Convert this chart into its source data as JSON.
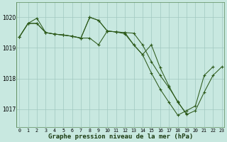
{
  "background_color": "#c8e8e0",
  "plot_bg_color": "#c8e8e0",
  "grid_color": "#a0c8c0",
  "line_color": "#2d5a1b",
  "xlabel": "Graphe pression niveau de la mer (hPa)",
  "xlabel_fontsize": 6.5,
  "ylim": [
    1016.4,
    1020.5
  ],
  "xlim": [
    -0.3,
    23.3
  ],
  "yticks": [
    1017,
    1018,
    1019,
    1020
  ],
  "xticks": [
    0,
    1,
    2,
    3,
    4,
    5,
    6,
    7,
    8,
    9,
    10,
    11,
    12,
    13,
    14,
    15,
    16,
    17,
    18,
    19,
    20,
    21,
    22,
    23
  ],
  "series": [
    {
      "x": [
        0,
        1,
        2,
        3,
        4,
        5,
        6,
        7,
        8,
        9,
        10,
        11,
        12,
        13,
        14,
        15,
        16,
        17,
        18,
        19,
        20,
        21,
        22,
        23
      ],
      "y": [
        1019.35,
        1019.8,
        1019.97,
        1019.5,
        1019.45,
        1019.42,
        1019.38,
        1019.32,
        1020.0,
        1019.9,
        1019.55,
        1019.52,
        1019.5,
        1019.48,
        1019.1,
        1018.55,
        1018.1,
        1017.7,
        1017.25,
        1016.82,
        1016.95,
        1017.55,
        1018.1,
        1018.38
      ]
    },
    {
      "x": [
        0,
        1,
        2,
        3,
        4,
        5,
        6,
        7,
        8,
        9,
        10,
        11,
        12,
        13,
        14,
        15,
        16,
        17,
        18,
        19,
        20,
        21,
        22
      ],
      "y": [
        1019.35,
        1019.8,
        1019.8,
        1019.5,
        1019.45,
        1019.42,
        1019.38,
        1019.32,
        1020.0,
        1019.9,
        1019.55,
        1019.52,
        1019.5,
        1019.1,
        1018.78,
        1018.18,
        1017.65,
        1017.22,
        1016.8,
        1016.95,
        1017.1,
        1018.1,
        1018.38
      ]
    },
    {
      "x": [
        0,
        1,
        2,
        3,
        4,
        5,
        6,
        7,
        8,
        9,
        10,
        11,
        12,
        13,
        14,
        15,
        16,
        17,
        18,
        19
      ],
      "y": [
        1019.35,
        1019.8,
        1019.8,
        1019.5,
        1019.45,
        1019.42,
        1019.38,
        1019.32,
        1019.32,
        1019.1,
        1019.55,
        1019.52,
        1019.46,
        1019.1,
        1018.78,
        1019.1,
        1018.35,
        1017.75,
        1017.22,
        1016.85
      ]
    }
  ]
}
